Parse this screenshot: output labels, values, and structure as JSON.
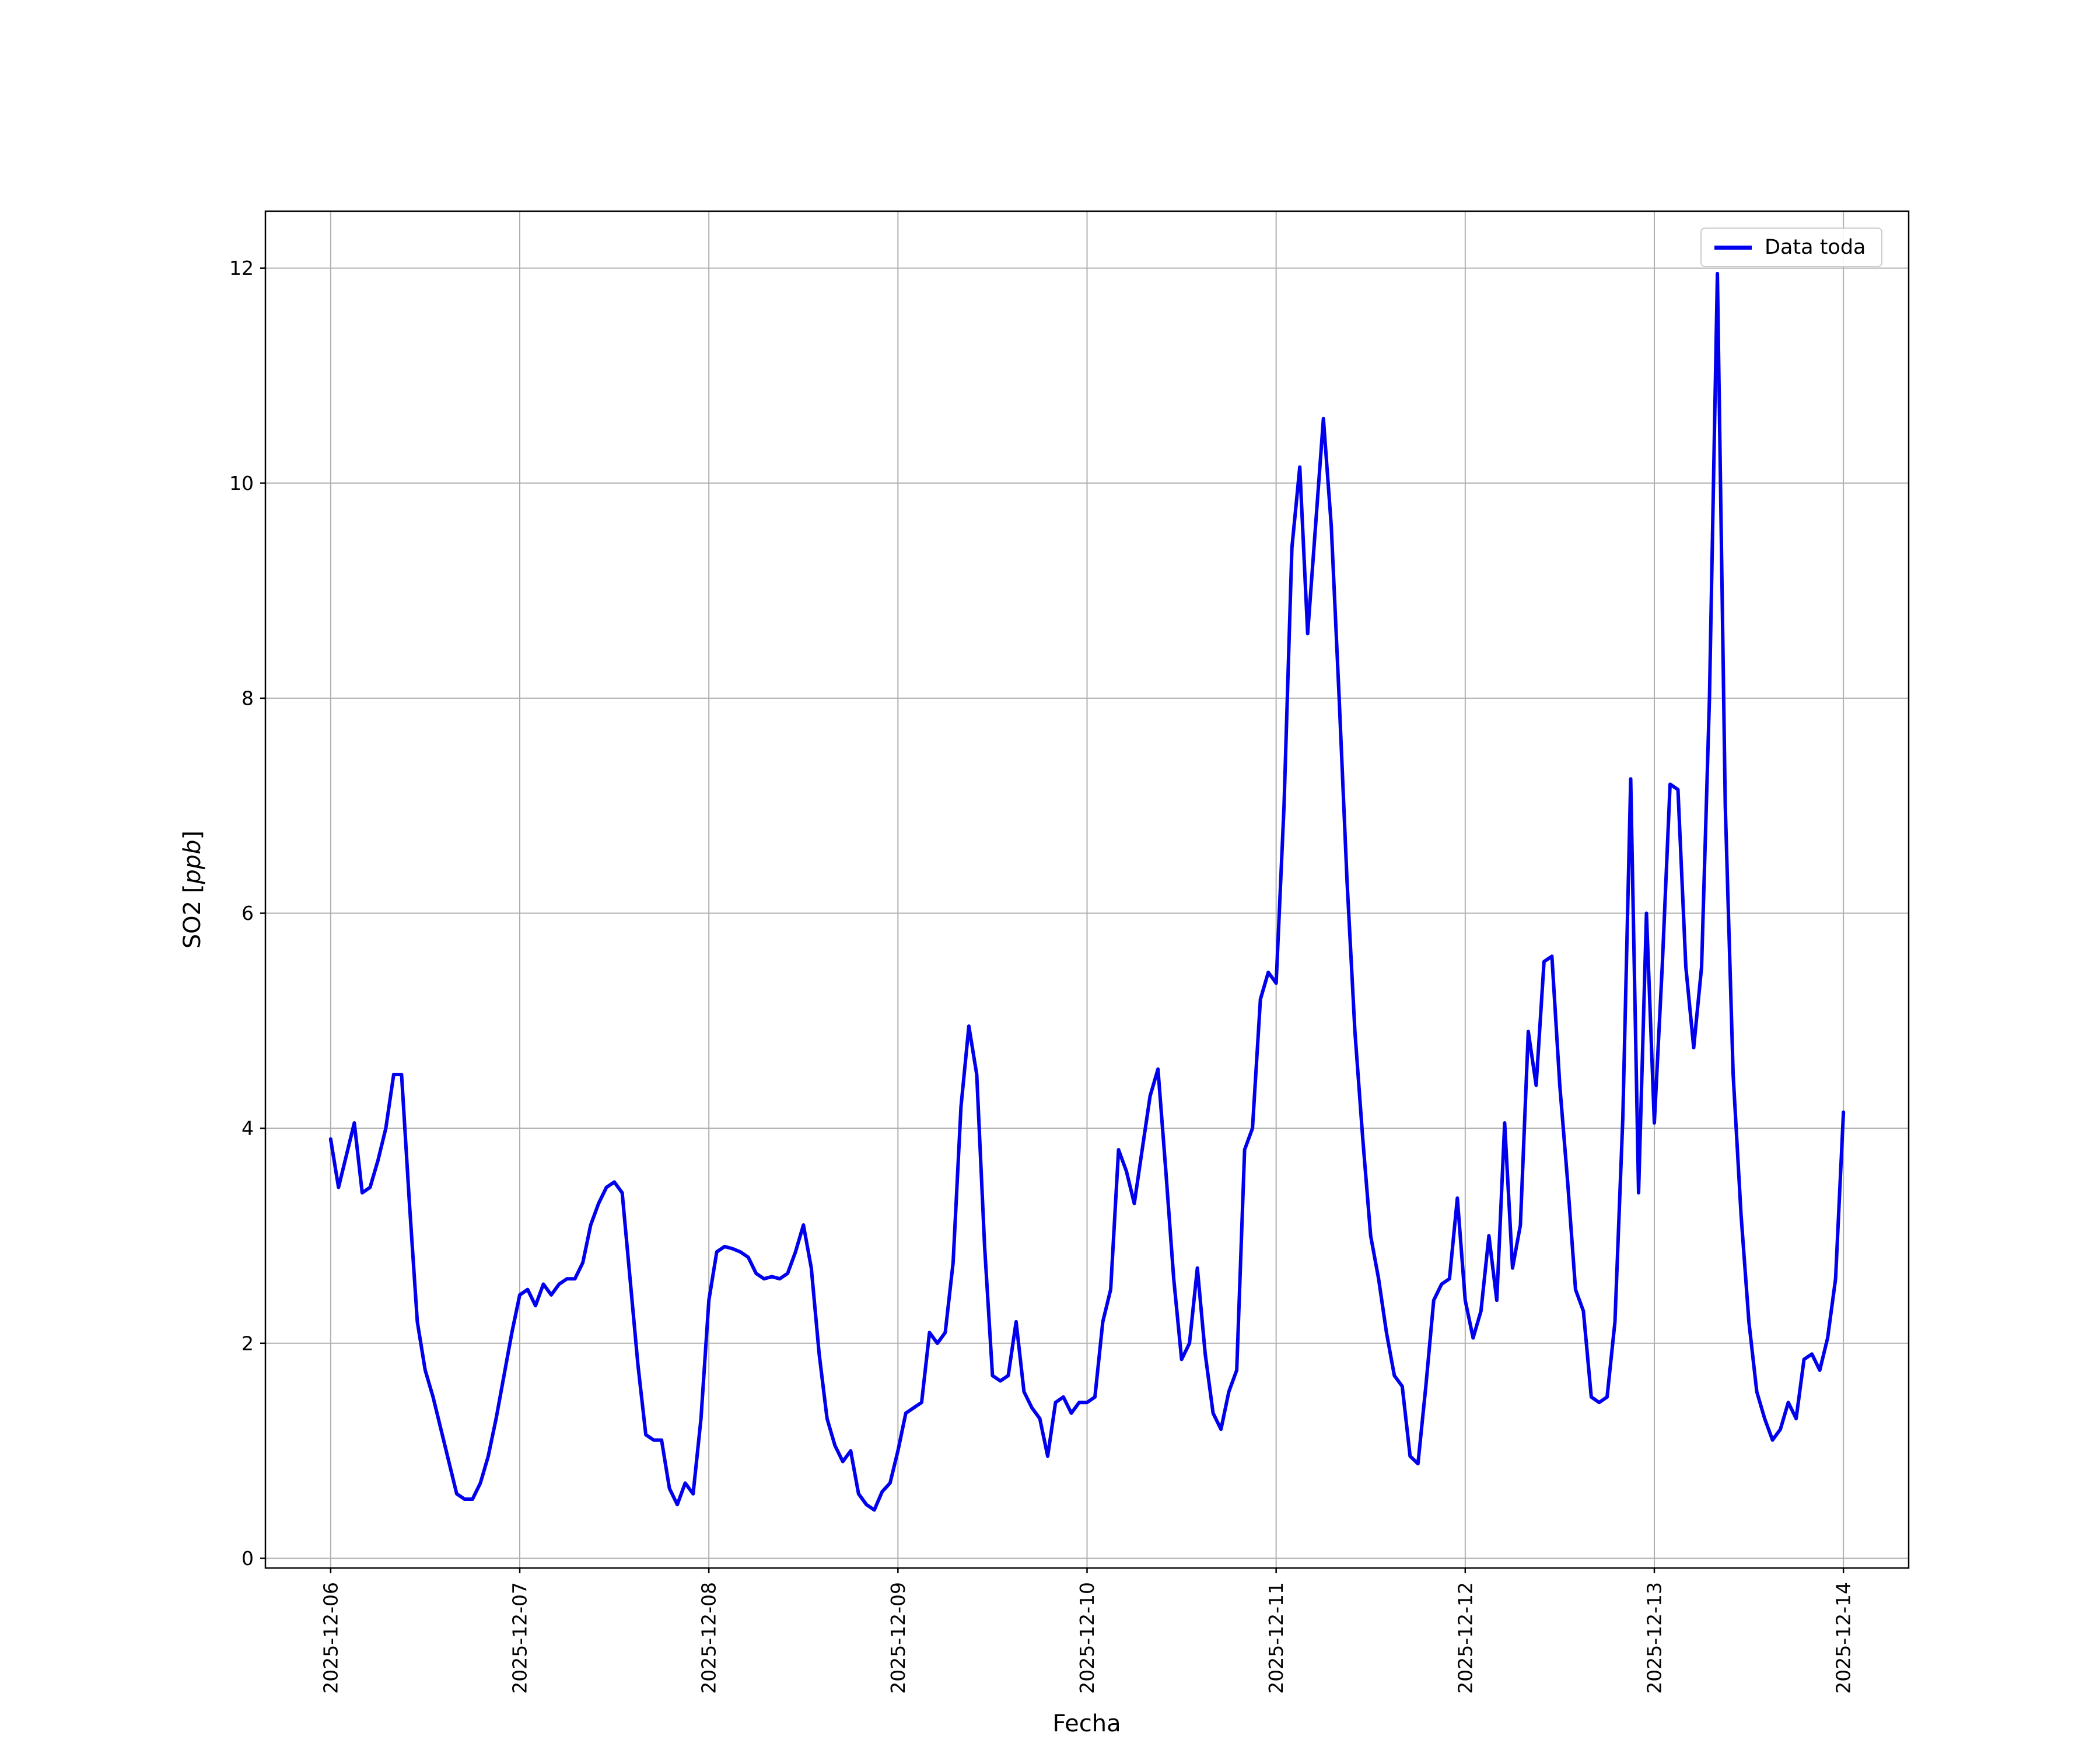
{
  "figure": {
    "background": "#ffffff"
  },
  "chart_data": {
    "type": "line",
    "title": "",
    "xlabel": "Fecha",
    "ylabel": {
      "prefix": "SO2 [",
      "italic": "ppb",
      "suffix": "]"
    },
    "legend": {
      "label": "Data toda",
      "position": "upper right"
    },
    "line": {
      "color": "#0000ee",
      "width": 6
    },
    "grid": true,
    "grid_color": "#b0b0b0",
    "x_start": "2025-12-06",
    "x_step_hours": 1,
    "x_tick_labels": [
      "2025-12-06",
      "2025-12-07",
      "2025-12-08",
      "2025-12-09",
      "2025-12-10",
      "2025-12-11",
      "2025-12-12",
      "2025-12-13",
      "2025-12-14"
    ],
    "y_ticks": [
      0,
      2,
      4,
      6,
      8,
      10,
      12
    ],
    "xlim_days": [
      -0.345,
      8.345
    ],
    "ylim": [
      -0.09,
      12.53
    ],
    "values": [
      3.9,
      3.45,
      3.75,
      4.05,
      3.4,
      3.45,
      3.7,
      4.0,
      4.5,
      4.5,
      3.3,
      2.2,
      1.75,
      1.5,
      1.2,
      0.9,
      0.6,
      0.55,
      0.55,
      0.7,
      0.95,
      1.3,
      1.7,
      2.1,
      2.45,
      2.5,
      2.35,
      2.55,
      2.45,
      2.55,
      2.6,
      2.6,
      2.75,
      3.1,
      3.3,
      3.45,
      3.5,
      3.4,
      2.6,
      1.8,
      1.15,
      1.1,
      1.1,
      0.65,
      0.5,
      0.7,
      0.6,
      1.3,
      2.4,
      2.85,
      2.9,
      2.88,
      2.85,
      2.8,
      2.65,
      2.6,
      2.62,
      2.6,
      2.65,
      2.85,
      3.1,
      2.7,
      1.9,
      1.3,
      1.05,
      0.9,
      1.0,
      0.6,
      0.5,
      0.45,
      0.62,
      0.7,
      1.0,
      1.35,
      1.4,
      1.45,
      2.1,
      2.0,
      2.1,
      2.75,
      4.2,
      4.95,
      4.5,
      2.9,
      1.7,
      1.65,
      1.7,
      2.2,
      1.55,
      1.4,
      1.3,
      0.95,
      1.45,
      1.5,
      1.35,
      1.45,
      1.45,
      1.5,
      2.2,
      2.5,
      3.8,
      3.6,
      3.3,
      3.8,
      4.3,
      4.55,
      3.6,
      2.6,
      1.85,
      2.0,
      2.7,
      1.9,
      1.35,
      1.2,
      1.55,
      1.75,
      3.8,
      4.0,
      5.2,
      5.45,
      5.35,
      7.0,
      9.4,
      10.15,
      8.6,
      9.6,
      10.6,
      9.6,
      8.0,
      6.3,
      4.9,
      3.9,
      3.0,
      2.6,
      2.1,
      1.7,
      1.6,
      0.95,
      0.88,
      1.6,
      2.4,
      2.55,
      2.6,
      3.35,
      2.4,
      2.05,
      2.3,
      3.0,
      2.4,
      4.05,
      2.7,
      3.1,
      4.9,
      4.4,
      5.55,
      5.6,
      4.4,
      3.5,
      2.5,
      2.3,
      1.5,
      1.45,
      1.5,
      2.2,
      4.1,
      7.25,
      3.4,
      6.0,
      4.05,
      5.5,
      7.2,
      7.15,
      5.5,
      4.75,
      5.5,
      8.0,
      11.95,
      7.0,
      4.5,
      3.2,
      2.2,
      1.55,
      1.3,
      1.1,
      1.2,
      1.45,
      1.3,
      1.85,
      1.9,
      1.75,
      2.05,
      2.6,
      4.15
    ]
  }
}
